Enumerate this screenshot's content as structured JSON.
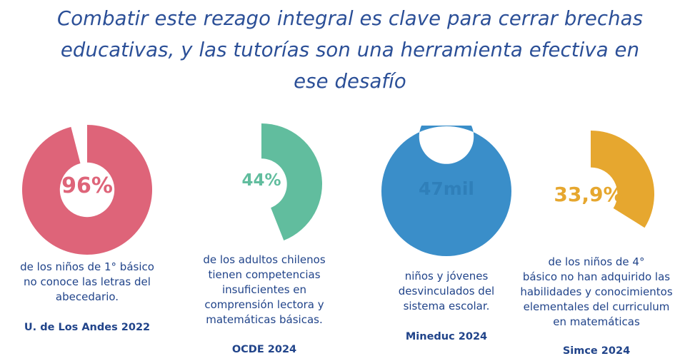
{
  "headline": {
    "lines": [
      "Combatir este rezago integral es clave para cerrar brechas",
      "educativas, y las tutorías son una herramienta efectiva en",
      "ese desafío"
    ]
  },
  "chart_data": [
    {
      "type": "pie",
      "variant": "donut",
      "label": "96%",
      "value": 96,
      "color": "#de6479",
      "description_lines": [
        "de los niños de 1° básico",
        "no conoce las letras del",
        "abecedario."
      ],
      "source": "U. de Los Andes 2022"
    },
    {
      "type": "pie",
      "variant": "donut",
      "label": "44%",
      "value": 44,
      "color": "#61bd9e",
      "description_lines": [
        "de los adultos chilenos",
        "tienen competencias",
        "insuficientes en",
        "comprensión lectora y",
        "matemáticas básicas."
      ],
      "source": "OCDE 2024"
    },
    {
      "type": "pie",
      "variant": "donut",
      "label": "47mil",
      "value": 100,
      "color": "#3a8ec9",
      "description_lines": [
        "niños y jóvenes",
        "desvinculados del",
        "sistema escolar."
      ],
      "source": "Mineduc 2024"
    },
    {
      "type": "pie",
      "variant": "donut",
      "label": "33,9%",
      "value": 33.9,
      "color": "#e6a72f",
      "description_lines": [
        "de los niños de 4°",
        "básico no han adquirido las",
        "habilidades y conocimientos",
        "elementales del curriculum",
        "en matemáticas"
      ],
      "source": "Simce 2024"
    }
  ]
}
